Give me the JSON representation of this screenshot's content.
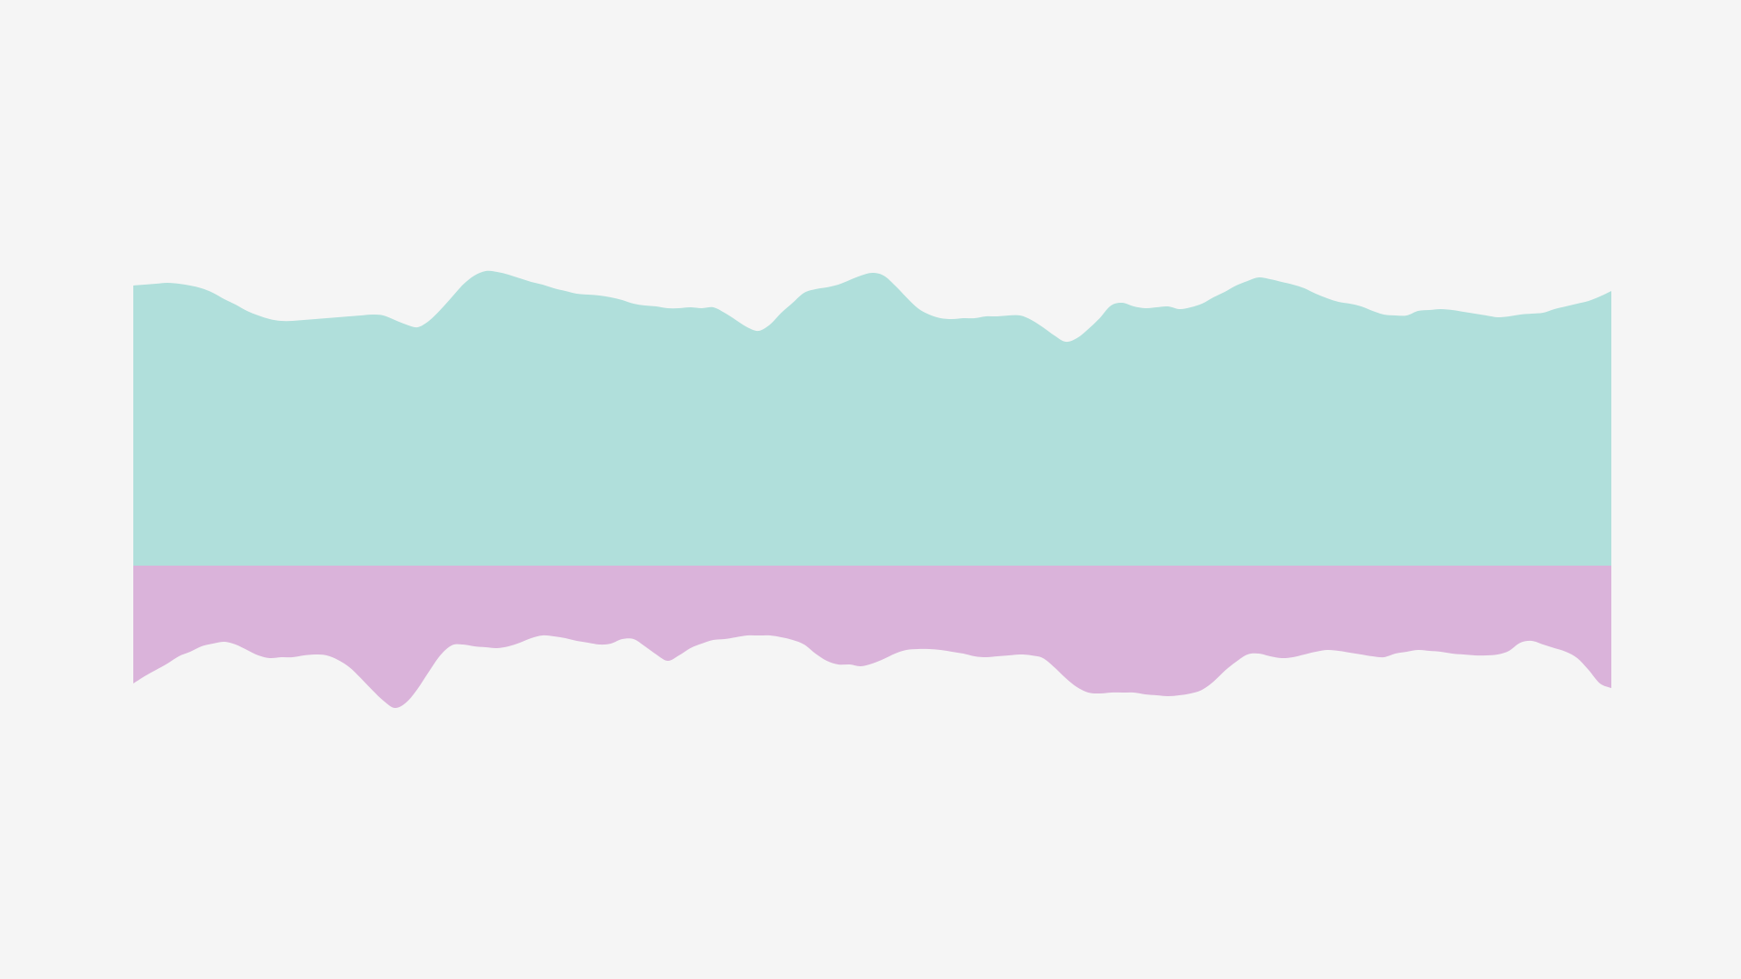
{
  "chart_data": {
    "type": "area",
    "baseline": 0,
    "x": [
      0,
      1,
      2,
      3,
      4,
      5,
      6,
      7,
      8,
      9,
      10,
      11,
      12,
      13,
      14,
      15,
      16,
      17,
      18,
      19,
      20,
      21,
      22,
      23,
      24,
      25,
      26,
      27,
      28,
      29,
      30,
      31,
      32,
      33,
      34,
      35,
      36,
      37,
      38,
      39,
      40,
      41,
      42,
      43,
      44,
      45,
      46,
      47,
      48,
      49,
      50,
      51,
      52,
      53,
      54,
      55,
      56,
      57,
      58,
      59,
      60,
      61,
      62,
      63,
      64,
      65,
      66,
      67,
      68,
      69,
      70,
      71,
      72,
      73,
      74,
      75,
      76,
      77,
      78,
      79,
      80,
      81,
      82,
      83,
      84,
      85,
      86,
      87,
      88,
      89,
      90,
      91,
      92,
      93,
      94,
      95,
      96,
      97,
      98,
      99,
      100,
      101,
      102,
      103,
      104,
      105,
      106,
      107,
      108,
      109,
      110,
      111,
      112,
      113,
      114,
      115,
      116,
      117,
      118,
      119,
      120,
      121,
      122,
      123,
      124,
      125,
      126,
      127,
      128,
      129,
      130
    ],
    "series": [
      {
        "color": "#b0dfdb",
        "values": [
          309,
          310,
          311,
          312,
          311,
          309,
          306,
          301,
          294,
          288,
          281,
          276,
          272,
          270,
          270,
          271,
          272,
          273,
          274,
          275,
          276,
          277,
          276,
          271,
          266,
          263,
          270,
          282,
          296,
          310,
          320,
          325,
          324,
          321,
          317,
          313,
          310,
          306,
          303,
          300,
          299,
          298,
          296,
          293,
          289,
          287,
          286,
          284,
          284,
          285,
          284,
          285,
          279,
          271,
          263,
          259,
          266,
          279,
          290,
          301,
          305,
          307,
          310,
          315,
          320,
          323,
          320,
          309,
          296,
          284,
          277,
          273,
          272,
          273,
          273,
          275,
          275,
          276,
          276,
          271,
          263,
          254,
          247,
          251,
          261,
          273,
          287,
          290,
          286,
          284,
          285,
          286,
          283,
          285,
          289,
          296,
          302,
          309,
          314,
          318,
          316,
          313,
          310,
          306,
          300,
          295,
          291,
          289,
          286,
          281,
          277,
          276,
          276,
          281,
          282,
          283,
          282,
          280,
          278,
          276,
          274,
          275,
          277,
          278,
          279,
          283,
          286,
          289,
          292,
          297,
          303
        ]
      },
      {
        "color": "#dab3da",
        "values": [
          -130,
          -122,
          -115,
          -108,
          -100,
          -95,
          -89,
          -86,
          -84,
          -87,
          -93,
          -99,
          -102,
          -101,
          -101,
          -99,
          -98,
          -99,
          -104,
          -112,
          -124,
          -137,
          -149,
          -157,
          -151,
          -136,
          -117,
          -99,
          -88,
          -87,
          -89,
          -90,
          -91,
          -89,
          -85,
          -80,
          -77,
          -78,
          -80,
          -83,
          -85,
          -87,
          -86,
          -81,
          -81,
          -89,
          -98,
          -105,
          -99,
          -91,
          -86,
          -82,
          -81,
          -79,
          -77,
          -77,
          -77,
          -79,
          -82,
          -87,
          -97,
          -105,
          -109,
          -109,
          -111,
          -108,
          -103,
          -97,
          -93,
          -92,
          -92,
          -93,
          -95,
          -97,
          -100,
          -101,
          -100,
          -99,
          -98,
          -99,
          -102,
          -112,
          -124,
          -134,
          -140,
          -141,
          -140,
          -140,
          -140,
          -142,
          -143,
          -144,
          -143,
          -141,
          -137,
          -128,
          -116,
          -106,
          -98,
          -97,
          -100,
          -102,
          -101,
          -98,
          -95,
          -93,
          -94,
          -96,
          -98,
          -100,
          -101,
          -97,
          -95,
          -93,
          -94,
          -95,
          -97,
          -98,
          -99,
          -99,
          -98,
          -94,
          -85,
          -83,
          -87,
          -91,
          -95,
          -102,
          -115,
          -130,
          -135
        ]
      }
    ]
  }
}
